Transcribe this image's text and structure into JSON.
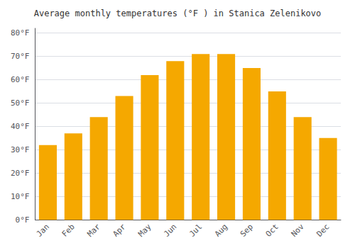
{
  "chart_data": {
    "type": "bar",
    "title": "Average monthly temperatures (°F ) in Stanica Zelenikovo",
    "categories": [
      "Jan",
      "Feb",
      "Mar",
      "Apr",
      "May",
      "Jun",
      "Jul",
      "Aug",
      "Sep",
      "Oct",
      "Nov",
      "Dec"
    ],
    "values": [
      32,
      37,
      44,
      53,
      62,
      68,
      71,
      71,
      65,
      55,
      44,
      35
    ],
    "color": "#F5A800",
    "ylim": [
      0,
      82
    ],
    "yticks": [
      {
        "value": 0,
        "label": "0°F"
      },
      {
        "value": 10,
        "label": "10°F"
      },
      {
        "value": 20,
        "label": "20°F"
      },
      {
        "value": 30,
        "label": "30°F"
      },
      {
        "value": 40,
        "label": "40°F"
      },
      {
        "value": 50,
        "label": "50°F"
      },
      {
        "value": 60,
        "label": "60°F"
      },
      {
        "value": 70,
        "label": "70°F"
      },
      {
        "value": 80,
        "label": "80°F"
      }
    ],
    "grid": true
  }
}
